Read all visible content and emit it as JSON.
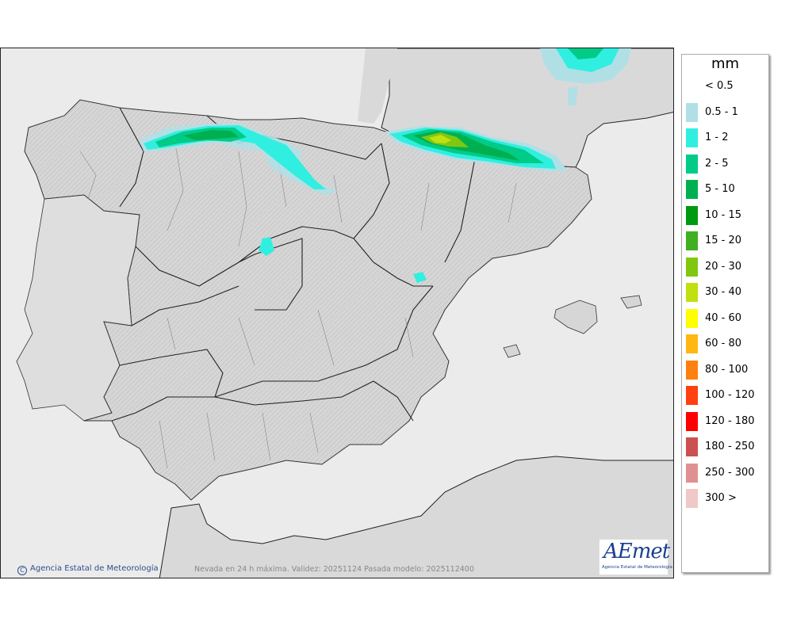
{
  "legend": {
    "title": "mm",
    "items": [
      {
        "label": "< 0.5",
        "color": ""
      },
      {
        "label": "0.5 - 1",
        "color": "#b0e0e6"
      },
      {
        "label": "1 - 2",
        "color": "#30efe0"
      },
      {
        "label": "2 - 5",
        "color": "#00cc88"
      },
      {
        "label": "5 - 10",
        "color": "#00b050"
      },
      {
        "label": "10 - 15",
        "color": "#009a10"
      },
      {
        "label": "15 - 20",
        "color": "#40b020"
      },
      {
        "label": "20 - 30",
        "color": "#80c810"
      },
      {
        "label": "30 - 40",
        "color": "#c0e010"
      },
      {
        "label": "40 - 60",
        "color": "#ffff00"
      },
      {
        "label": "60 - 80",
        "color": "#ffb810"
      },
      {
        "label": "80 - 100",
        "color": "#ff8010"
      },
      {
        "label": "100 - 120",
        "color": "#ff4010"
      },
      {
        "label": "120 - 180",
        "color": "#ff0000"
      },
      {
        "label": "180 - 250",
        "color": "#cc5050"
      },
      {
        "label": "250 - 300",
        "color": "#e09090"
      },
      {
        "label": "300 >",
        "color": "#f0c8c8"
      }
    ]
  },
  "credit": "Agencia Estatal de Meteorología",
  "credit_symbol": "C",
  "caption": "Nevada en 24 h máxima. Validez: 20251124 Pasada modelo: 2025112400",
  "logo": {
    "mark": "AEmet",
    "subtitle": "Agencia Estatal de Meteorología"
  },
  "colors": {
    "land": "#d9d9d9",
    "sea": "#ebebeb",
    "border": "#222222"
  }
}
